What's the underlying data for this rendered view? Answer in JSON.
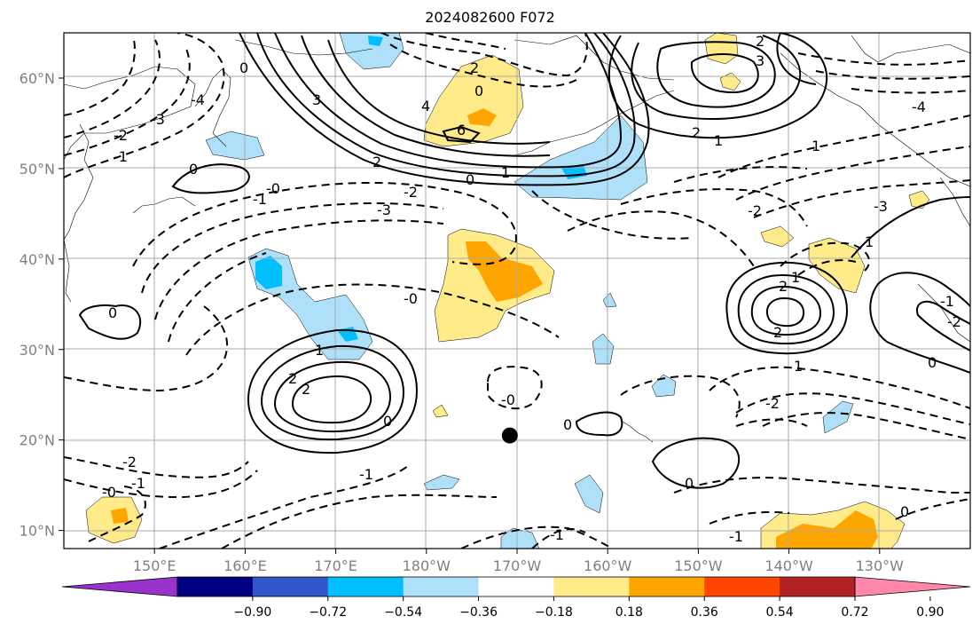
{
  "title": "2024082600 F072",
  "map": {
    "lat_labels": [
      "60°N",
      "50°N",
      "40°N",
      "30°N",
      "20°N",
      "10°N"
    ],
    "lat_values": [
      60,
      50,
      40,
      30,
      20,
      10
    ],
    "lon_labels": [
      "150°E",
      "160°E",
      "170°E",
      "180°W",
      "170°W",
      "160°W",
      "150°W",
      "140°W",
      "130°W"
    ],
    "lon_values": [
      150,
      160,
      170,
      180,
      190,
      200,
      210,
      220,
      230
    ],
    "extent": {
      "lon_min": 140,
      "lon_max": 240,
      "lat_min": 8,
      "lat_max": 65
    },
    "marker": {
      "lon": 189.2,
      "lat": 20.5
    },
    "contour_labels": [
      "0",
      "1",
      "2",
      "3",
      "4",
      "6",
      "-0",
      "-1",
      "-2",
      "-3",
      "-4"
    ]
  },
  "colorbar": {
    "ticks": [
      "−0.90",
      "−0.72",
      "−0.54",
      "−0.36",
      "−0.18",
      "0.18",
      "0.36",
      "0.54",
      "0.72",
      "0.90"
    ],
    "colors": [
      "#9933cc",
      "#000080",
      "#3355cc",
      "#00bfff",
      "#aee0fa",
      "#ffffff",
      "#ffeb8a",
      "#ffa500",
      "#ff4500",
      "#b22222",
      "#ff88aa"
    ]
  }
}
